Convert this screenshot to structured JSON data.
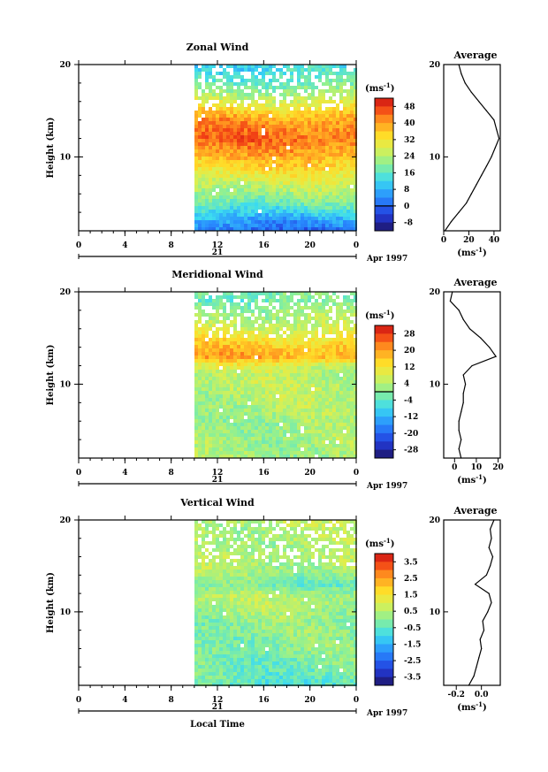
{
  "chart_data": [
    {
      "type": "heatmap",
      "title": "Zonal Wind",
      "ylabel": "Height (km)",
      "x_ticks": [
        "0",
        "4",
        "8",
        "12",
        "16",
        "20",
        "0"
      ],
      "y_ticks": [
        "20",
        "10"
      ],
      "ylim": [
        2,
        20
      ],
      "date_label": "21",
      "month_label": "Apr 1997",
      "colorbar": {
        "unit": "(ms",
        "unit_exp": "-1",
        "unit_close": ")",
        "ticks": [
          "48",
          "40",
          "32",
          "24",
          "16",
          "8",
          "0",
          "-8"
        ],
        "range": [
          -12,
          52
        ],
        "contour_at": 0
      },
      "profile": {
        "title": "Average",
        "x_ticks": [
          "0",
          "20",
          "40"
        ],
        "xlim": [
          0,
          45
        ],
        "unit": "(ms",
        "unit_exp": "-1",
        "unit_close": ")",
        "heights": [
          2,
          3,
          4,
          5,
          6,
          7,
          8,
          9,
          10,
          11,
          12,
          13,
          14,
          15,
          16,
          17,
          18,
          19,
          20
        ],
        "values": [
          1,
          6,
          12,
          18,
          22,
          26,
          30,
          34,
          38,
          41,
          44,
          42,
          40,
          34,
          28,
          22,
          17,
          14,
          12
        ]
      }
    },
    {
      "type": "heatmap",
      "title": "Meridional Wind",
      "ylabel": "Height (km)",
      "x_ticks": [
        "0",
        "4",
        "8",
        "12",
        "16",
        "20",
        "0"
      ],
      "y_ticks": [
        "20",
        "10"
      ],
      "ylim": [
        2,
        20
      ],
      "date_label": "21",
      "month_label": "Apr 1997",
      "colorbar": {
        "unit": "(ms",
        "unit_exp": "-1",
        "unit_close": ")",
        "ticks": [
          "28",
          "20",
          "12",
          "4",
          "-4",
          "-12",
          "-20",
          "-28"
        ],
        "range": [
          -32,
          32
        ],
        "contour_at": 0
      },
      "profile": {
        "title": "Average",
        "x_ticks": [
          "0",
          "10",
          "20"
        ],
        "xlim": [
          -5,
          21
        ],
        "unit": "(ms",
        "unit_exp": "-1",
        "unit_close": ")",
        "heights": [
          2,
          3,
          4,
          5,
          6,
          7,
          8,
          9,
          10,
          11,
          12,
          13,
          14,
          15,
          16,
          17,
          18,
          19,
          20
        ],
        "values": [
          3,
          2,
          3,
          2,
          2,
          3,
          4,
          4,
          5,
          4,
          8,
          19,
          16,
          12,
          7,
          4,
          2,
          -2,
          -1
        ]
      }
    },
    {
      "type": "heatmap",
      "title": "Vertical Wind",
      "ylabel": "Height (km)",
      "x_ticks": [
        "0",
        "4",
        "8",
        "12",
        "16",
        "20",
        "0"
      ],
      "y_ticks": [
        "20",
        "10"
      ],
      "ylim": [
        2,
        20
      ],
      "date_label": "21",
      "month_label": "Apr 1997",
      "xlabel": "Local Time",
      "colorbar": {
        "unit": "(ms",
        "unit_exp": "-1",
        "unit_close": ")",
        "ticks": [
          "3.5",
          "2.5",
          "1.5",
          "0.5",
          "-0.5",
          "-1.5",
          "-2.5",
          "-3.5"
        ],
        "range": [
          -4,
          4
        ],
        "contour_at": null
      },
      "profile": {
        "title": "Average",
        "x_ticks": [
          "-0.2",
          "0.0"
        ],
        "xlim": [
          -0.3,
          0.15
        ],
        "unit": "(ms",
        "unit_exp": "-1",
        "unit_close": ")",
        "heights": [
          2,
          3,
          4,
          5,
          6,
          7,
          8,
          9,
          10,
          11,
          12,
          13,
          14,
          15,
          16,
          17,
          18,
          19,
          20
        ],
        "values": [
          -0.1,
          -0.06,
          -0.04,
          -0.02,
          0.0,
          -0.01,
          0.02,
          0.01,
          0.05,
          0.08,
          0.06,
          -0.05,
          0.04,
          0.07,
          0.09,
          0.06,
          0.08,
          0.07,
          0.1
        ]
      }
    }
  ]
}
